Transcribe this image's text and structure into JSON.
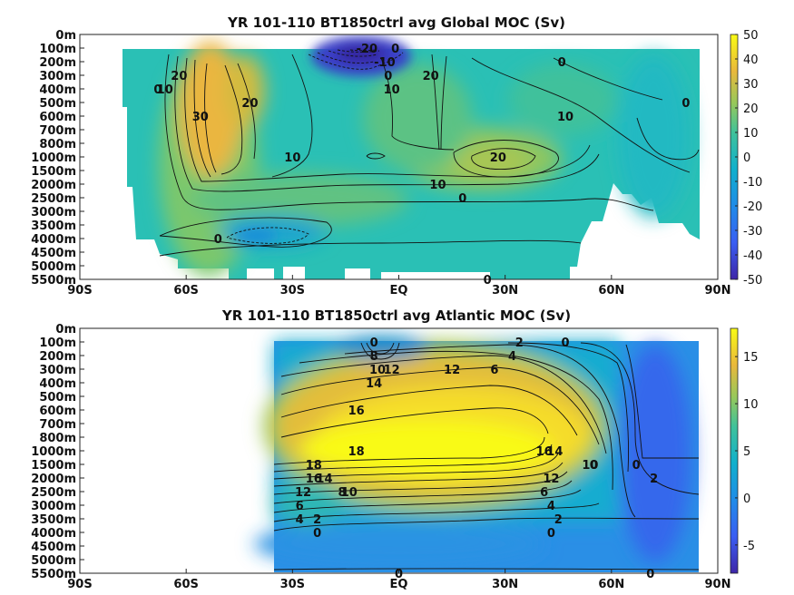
{
  "chart_data": [
    {
      "type": "heatmap",
      "title": "YR 101-110 BT1850ctrl avg  Global MOC (Sv)",
      "x_tick_labels": [
        "90S",
        "60S",
        "30S",
        "EQ",
        "30N",
        "60N",
        "90N"
      ],
      "x_ticks": [
        -90,
        -60,
        -30,
        0,
        30,
        60,
        90
      ],
      "xlim": [
        -90,
        90
      ],
      "y_tick_labels": [
        "0m",
        "100m",
        "200m",
        "300m",
        "400m",
        "500m",
        "600m",
        "700m",
        "800m",
        "1000m",
        "1500m",
        "2000m",
        "2500m",
        "3000m",
        "3500m",
        "4000m",
        "4500m",
        "5000m",
        "5500m"
      ],
      "colorbar": {
        "ticks": [
          50,
          40,
          30,
          20,
          10,
          0,
          -10,
          -20,
          -30,
          -40,
          -50
        ],
        "range": [
          -50,
          50
        ]
      },
      "contour_labels": [
        {
          "text": "-20",
          "lat": -9,
          "depth": "100m"
        },
        {
          "text": "-10",
          "lat": -4,
          "depth": "200m"
        },
        {
          "text": "0",
          "lat": -3,
          "depth": "300m"
        },
        {
          "text": "0",
          "lat": -1,
          "depth": "100m"
        },
        {
          "text": "20",
          "lat": -62,
          "depth": "300m"
        },
        {
          "text": "10",
          "lat": -66,
          "depth": "400m"
        },
        {
          "text": "0",
          "lat": -68,
          "depth": "400m"
        },
        {
          "text": "30",
          "lat": -56,
          "depth": "600m"
        },
        {
          "text": "20",
          "lat": -42,
          "depth": "500m"
        },
        {
          "text": "10",
          "lat": -2,
          "depth": "400m"
        },
        {
          "text": "20",
          "lat": 9,
          "depth": "300m"
        },
        {
          "text": "0",
          "lat": 46,
          "depth": "200m"
        },
        {
          "text": "10",
          "lat": 47,
          "depth": "600m"
        },
        {
          "text": "0",
          "lat": 81,
          "depth": "500m"
        },
        {
          "text": "10",
          "lat": -30,
          "depth": "1000m"
        },
        {
          "text": "20",
          "lat": 28,
          "depth": "1000m"
        },
        {
          "text": "10",
          "lat": 11,
          "depth": "2000m"
        },
        {
          "text": "0",
          "lat": 18,
          "depth": "2500m"
        },
        {
          "text": "0",
          "lat": -51,
          "depth": "4000m"
        },
        {
          "text": "0",
          "lat": 25,
          "depth": "5500m"
        }
      ]
    },
    {
      "type": "heatmap",
      "title": "YR 101-110 BT1850ctrl avg  Atlantic MOC (Sv)",
      "x_tick_labels": [
        "90S",
        "60S",
        "30S",
        "EQ",
        "30N",
        "60N",
        "90N"
      ],
      "x_ticks": [
        -90,
        -60,
        -30,
        0,
        30,
        60,
        90
      ],
      "xlim": [
        -90,
        90
      ],
      "y_tick_labels": [
        "0m",
        "100m",
        "200m",
        "300m",
        "400m",
        "500m",
        "600m",
        "700m",
        "800m",
        "1000m",
        "1500m",
        "2000m",
        "2500m",
        "3000m",
        "3500m",
        "4000m",
        "4500m",
        "5000m",
        "5500m"
      ],
      "colorbar": {
        "ticks": [
          15,
          10,
          5,
          0,
          -5
        ],
        "range": [
          -8,
          18
        ]
      },
      "contour_labels": [
        {
          "text": "0",
          "lat": -7,
          "depth": "100m"
        },
        {
          "text": "8",
          "lat": -7,
          "depth": "200m"
        },
        {
          "text": "10",
          "lat": -6,
          "depth": "300m"
        },
        {
          "text": "12",
          "lat": -2,
          "depth": "300m"
        },
        {
          "text": "12",
          "lat": 15,
          "depth": "300m"
        },
        {
          "text": "6",
          "lat": 27,
          "depth": "300m"
        },
        {
          "text": "4",
          "lat": 32,
          "depth": "200m"
        },
        {
          "text": "2",
          "lat": 34,
          "depth": "100m"
        },
        {
          "text": "0",
          "lat": 47,
          "depth": "100m"
        },
        {
          "text": "14",
          "lat": -7,
          "depth": "400m"
        },
        {
          "text": "16",
          "lat": -12,
          "depth": "600m"
        },
        {
          "text": "18",
          "lat": -12,
          "depth": "1000m"
        },
        {
          "text": "16",
          "lat": 41,
          "depth": "1000m"
        },
        {
          "text": "14",
          "lat": 44,
          "depth": "1000m"
        },
        {
          "text": "12",
          "lat": 43,
          "depth": "2000m"
        },
        {
          "text": "10",
          "lat": 54,
          "depth": "1500m"
        },
        {
          "text": "0",
          "lat": 55,
          "depth": "1500m"
        },
        {
          "text": "0",
          "lat": 67,
          "depth": "1500m"
        },
        {
          "text": "2",
          "lat": 72,
          "depth": "2000m"
        },
        {
          "text": "18",
          "lat": -24,
          "depth": "1500m"
        },
        {
          "text": "16",
          "lat": -24,
          "depth": "2000m"
        },
        {
          "text": "14",
          "lat": -21,
          "depth": "2000m"
        },
        {
          "text": "12",
          "lat": -27,
          "depth": "2500m"
        },
        {
          "text": "10",
          "lat": -14,
          "depth": "2500m"
        },
        {
          "text": "8",
          "lat": -16,
          "depth": "2500m"
        },
        {
          "text": "6",
          "lat": -28,
          "depth": "3000m"
        },
        {
          "text": "4",
          "lat": -28,
          "depth": "3500m"
        },
        {
          "text": "2",
          "lat": -23,
          "depth": "3500m"
        },
        {
          "text": "0",
          "lat": -23,
          "depth": "4000m"
        },
        {
          "text": "6",
          "lat": 41,
          "depth": "2500m"
        },
        {
          "text": "4",
          "lat": 43,
          "depth": "3000m"
        },
        {
          "text": "2",
          "lat": 45,
          "depth": "3500m"
        },
        {
          "text": "0",
          "lat": 43,
          "depth": "4000m"
        },
        {
          "text": "0",
          "lat": 0,
          "depth": "5500m"
        },
        {
          "text": "0",
          "lat": 71,
          "depth": "5500m"
        }
      ]
    }
  ]
}
